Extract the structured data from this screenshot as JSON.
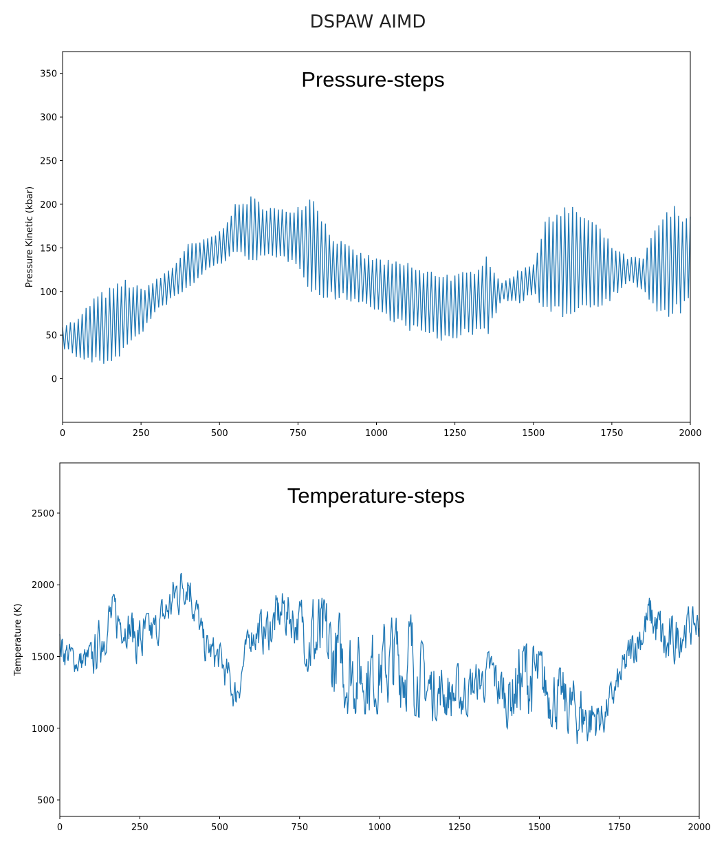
{
  "title": "DSPAW AIMD",
  "colors": {
    "line": "#1f77b4"
  },
  "chart_data": [
    {
      "type": "line",
      "title": "Pressure-steps",
      "xlabel": "",
      "ylabel": "Pressure Kinetic (kbar)",
      "xlim": [
        0,
        2000
      ],
      "ylim": [
        -50,
        375
      ],
      "xticks": [
        0,
        250,
        500,
        750,
        1000,
        1250,
        1500,
        1750,
        2000
      ],
      "yticks": [
        0,
        50,
        100,
        150,
        200,
        250,
        300,
        350
      ],
      "grid": false,
      "envelope_x": [
        0,
        50,
        100,
        150,
        200,
        250,
        300,
        350,
        400,
        450,
        500,
        550,
        600,
        650,
        700,
        750,
        800,
        850,
        900,
        950,
        1000,
        1050,
        1100,
        1150,
        1200,
        1250,
        1300,
        1350,
        1400,
        1450,
        1500,
        1550,
        1600,
        1650,
        1700,
        1750,
        1800,
        1850,
        1900,
        1950,
        2000
      ],
      "upper": [
        62,
        70,
        95,
        105,
        115,
        105,
        115,
        130,
        155,
        160,
        170,
        200,
        210,
        200,
        195,
        200,
        215,
        170,
        155,
        145,
        140,
        135,
        135,
        125,
        125,
        120,
        125,
        145,
        110,
        125,
        135,
        195,
        200,
        195,
        180,
        155,
        140,
        140,
        185,
        200,
        190
      ],
      "lower": [
        35,
        22,
        15,
        15,
        30,
        50,
        75,
        90,
        100,
        120,
        130,
        140,
        135,
        135,
        135,
        130,
        90,
        90,
        90,
        85,
        75,
        65,
        55,
        50,
        40,
        45,
        50,
        45,
        90,
        85,
        95,
        65,
        70,
        75,
        80,
        90,
        110,
        100,
        65,
        70,
        80
      ]
    },
    {
      "type": "line",
      "title": "Temperature-steps",
      "xlabel": "",
      "ylabel": "Temperature (K)",
      "xlim": [
        0,
        2000
      ],
      "ylim": [
        385,
        2850
      ],
      "xticks": [
        0,
        250,
        500,
        750,
        1000,
        1250,
        1500,
        1750,
        2000
      ],
      "yticks": [
        500,
        1000,
        1500,
        2000,
        2500
      ],
      "grid": false,
      "envelope_x": [
        0,
        50,
        100,
        150,
        200,
        250,
        300,
        350,
        400,
        450,
        500,
        550,
        600,
        650,
        700,
        750,
        800,
        850,
        900,
        950,
        1000,
        1050,
        1100,
        1150,
        1200,
        1250,
        1300,
        1350,
        1400,
        1450,
        1500,
        1550,
        1600,
        1650,
        1700,
        1750,
        1800,
        1850,
        1900,
        1950,
        2000
      ],
      "upper": [
        1700,
        1550,
        1600,
        1950,
        1900,
        1800,
        1800,
        2050,
        2250,
        1700,
        1600,
        1350,
        1800,
        1850,
        2000,
        1900,
        1950,
        1850,
        1750,
        1650,
        1700,
        1800,
        1800,
        1500,
        1450,
        1450,
        1450,
        1550,
        1400,
        1700,
        1550,
        1450,
        1350,
        1300,
        1200,
        1450,
        1750,
        1950,
        1750,
        1850,
        1850
      ],
      "lower": [
        1450,
        1380,
        1320,
        1550,
        1600,
        1400,
        1550,
        1700,
        1900,
        1450,
        1350,
        1100,
        1550,
        1500,
        1650,
        1550,
        1250,
        1150,
        1100,
        1100,
        1100,
        1150,
        1100,
        1050,
        1050,
        1000,
        1150,
        1200,
        1000,
        1050,
        1050,
        1000,
        900,
        850,
        950,
        1200,
        1450,
        1600,
        1300,
        1550,
        1600
      ]
    }
  ]
}
